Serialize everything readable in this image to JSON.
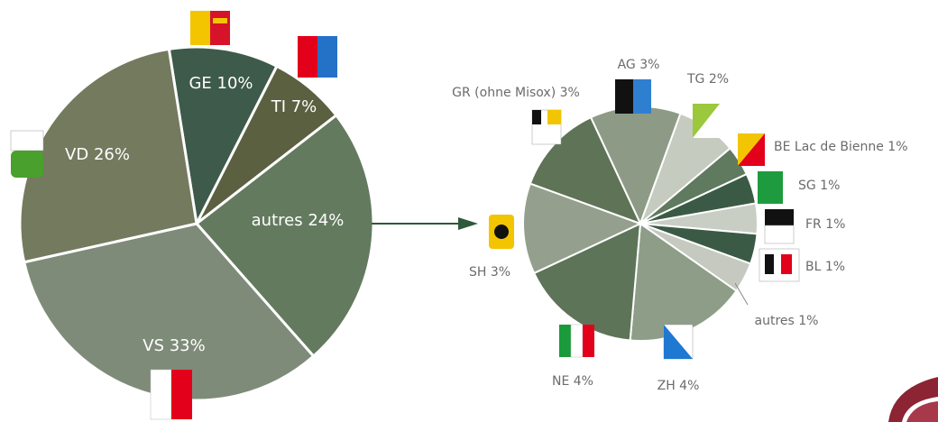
{
  "chart_data": [
    {
      "type": "pie",
      "values": [
        10,
        7,
        24,
        33,
        26
      ],
      "value_labels": [
        "GE 10%",
        "TI 7%",
        "autres 24%",
        "VS 33%",
        "VD 26%"
      ],
      "colors": [
        "#3d5a4a",
        "#5b6040",
        "#637a5e",
        "#7f8b79",
        "#737a5e"
      ]
    },
    {
      "type": "pie",
      "values": [
        3,
        2,
        1,
        1,
        1,
        1,
        1,
        4,
        4,
        3,
        3
      ],
      "value_labels": [
        "AG 3%",
        "TG 2%",
        "BE Lac de Bienne 1%",
        "SG 1%",
        "FR 1%",
        "BL 1%",
        "autres 1%",
        "ZH 4%",
        "NE 4%",
        "SH 3%",
        "GR (ohne Misox) 3%"
      ],
      "colors": [
        "#8d9b86",
        "#c5cbbf",
        "#5f7a5e",
        "#3b5a45",
        "#c9cec4",
        "#3b5a45",
        "#c5c9bf",
        "#8e9d88",
        "#5d7458",
        "#94a08d",
        "#5f7356"
      ]
    }
  ]
}
